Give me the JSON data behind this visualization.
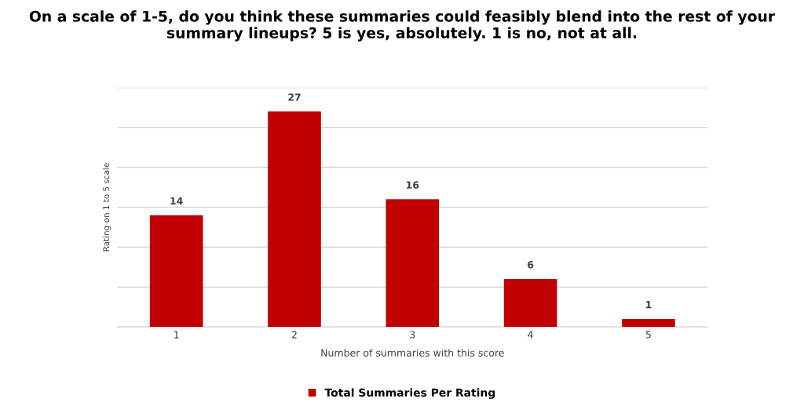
{
  "chart_data": {
    "type": "bar",
    "title": "On a scale of 1-5, do you think these summaries could feasibly blend into the rest of your summary lineups? 5 is yes, absolutely. 1 is no, not at all.",
    "xlabel": "Number of summaries with this score",
    "ylabel": "Rating on 1 to 5 scale",
    "categories": [
      "1",
      "2",
      "3",
      "4",
      "5"
    ],
    "series": [
      {
        "name": "Total Summaries Per Rating",
        "color": "#c00000",
        "values": [
          14,
          27,
          16,
          6,
          1
        ]
      }
    ],
    "ylim": [
      0,
      30
    ],
    "yticks": [
      {
        "value": 0,
        "label": null
      },
      {
        "value": 5,
        "label": null
      },
      {
        "value": 10,
        "label": null
      },
      {
        "value": 15,
        "label": null
      },
      {
        "value": 20,
        "label": null
      },
      {
        "value": 25,
        "label": null
      },
      {
        "value": 30,
        "label": null
      }
    ],
    "grid": "y",
    "legend": "bottom",
    "data_labels": true,
    "tick_labels": "x"
  }
}
